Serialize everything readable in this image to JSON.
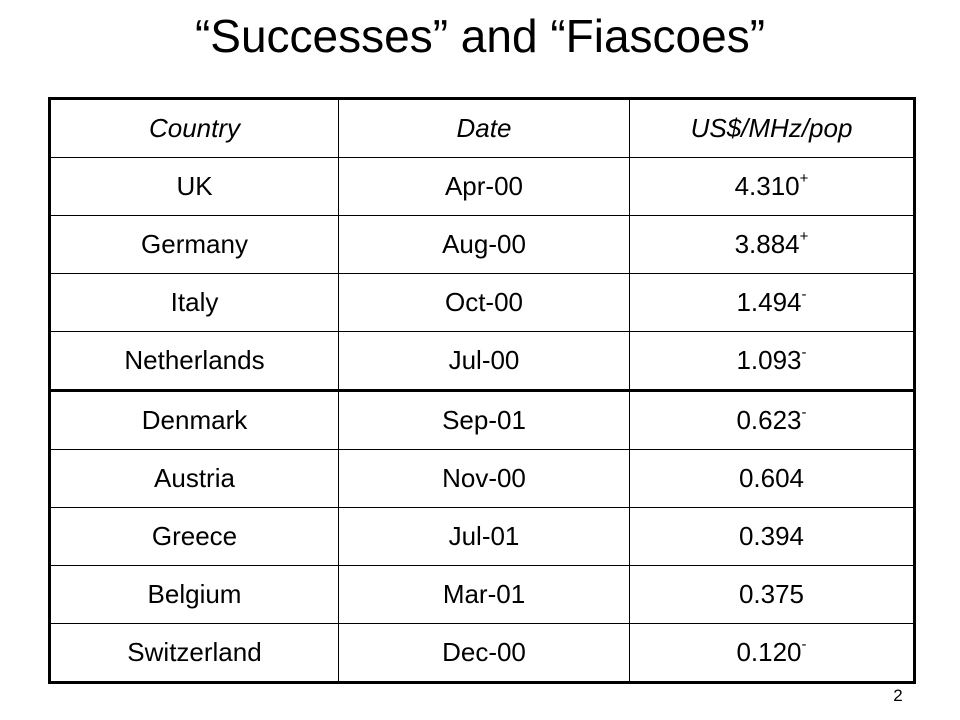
{
  "title": "“Successes” and “Fiascoes”",
  "table": {
    "header": [
      "Country",
      "Date",
      "US$/MHz/pop"
    ],
    "rows": [
      [
        "UK",
        "Apr-00",
        "4.310",
        "+"
      ],
      [
        "Germany",
        "Aug-00",
        "3.884",
        "+"
      ],
      [
        "Italy",
        "Oct-00",
        "1.494",
        "-"
      ],
      [
        "Netherlands",
        "Jul-00",
        "1.093",
        "-"
      ],
      [
        "Denmark",
        "Sep-01",
        "0.623",
        "-"
      ],
      [
        "Austria",
        "Nov-00",
        "0.604"
      ],
      [
        "Greece",
        "Jul-01",
        "0.394"
      ],
      [
        "Belgium",
        "Mar-01",
        "0.375"
      ],
      [
        "Switzerland",
        "Dec-00",
        "0.120",
        "-"
      ]
    ]
  },
  "page_number": "2"
}
